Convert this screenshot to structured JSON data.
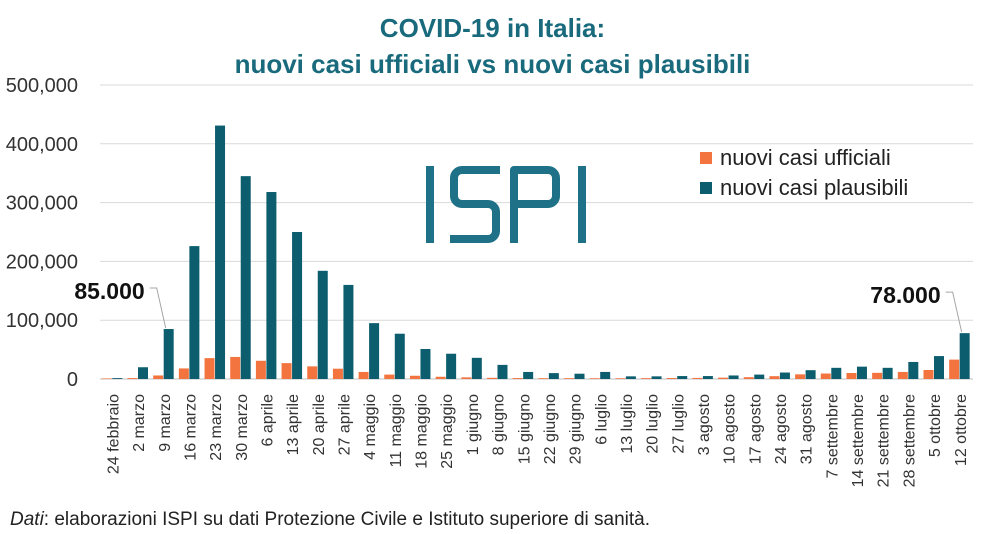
{
  "theme": {
    "title_color": "#186a7c",
    "logo_color": "#1e7187"
  },
  "logo": {
    "text": "ISPI"
  },
  "chart_data": {
    "type": "bar",
    "title": [
      "COVID-19 in Italia:",
      "nuovi casi ufficiali vs nuovi casi plausibili"
    ],
    "categories": [
      "24 febbraio",
      "2 marzo",
      "9 marzo",
      "16 marzo",
      "23 marzo",
      "30 marzo",
      "6 aprile",
      "13 aprile",
      "20 aprile",
      "27 aprile",
      "4 maggio",
      "11 maggio",
      "18 maggio",
      "25 maggio",
      "1 giugno",
      "8 giugno",
      "15 giugno",
      "22 giugno",
      "29 giugno",
      "6 luglio",
      "13 luglio",
      "20 luglio",
      "27 luglio",
      "3 agosto",
      "10 agosto",
      "17 agosto",
      "24 agosto",
      "31 agosto",
      "7 settembre",
      "14 settembre",
      "21 settembre",
      "28 settembre",
      "5 ottobre",
      "12 ottobre"
    ],
    "series": [
      {
        "name": "nuovi casi ufficiali",
        "color": "#f4743f",
        "values": [
          1000,
          1600,
          6000,
          18000,
          35500,
          37500,
          31000,
          27000,
          21500,
          17500,
          12000,
          7500,
          5500,
          3800,
          2800,
          2000,
          1600,
          1400,
          1400,
          1300,
          1300,
          1500,
          1700,
          1800,
          2300,
          3100,
          4800,
          7900,
          9300,
          10200,
          10500,
          12000,
          15300,
          33000
        ]
      },
      {
        "name": "nuovi casi plausibili",
        "color": "#0c5d6e",
        "values": [
          1500,
          20000,
          85000,
          226000,
          431000,
          345000,
          318000,
          250000,
          184000,
          160000,
          95000,
          77000,
          51000,
          43000,
          36000,
          24000,
          12000,
          10000,
          9000,
          12000,
          4500,
          4500,
          5000,
          5000,
          6000,
          7500,
          11000,
          15000,
          19000,
          21000,
          19000,
          29000,
          39000,
          78000
        ]
      }
    ],
    "ylim": [
      0,
      500000
    ],
    "y_ticks": [
      0,
      100000,
      200000,
      300000,
      400000,
      500000
    ],
    "y_tick_labels": [
      "0",
      "100,000",
      "200,000",
      "300,000",
      "400,000",
      "500,000"
    ],
    "annotations": [
      {
        "category": "9 marzo",
        "series": "nuovi casi plausibili",
        "text": "85.000"
      },
      {
        "category": "12 ottobre",
        "series": "nuovi casi plausibili",
        "text": "78.000"
      }
    ],
    "grid": true,
    "legend_position": "top-right"
  },
  "footer": {
    "source_label": "Dati",
    "source_text": ": elaborazioni ISPI su dati Protezione Civile e Istituto superiore di sanità."
  }
}
